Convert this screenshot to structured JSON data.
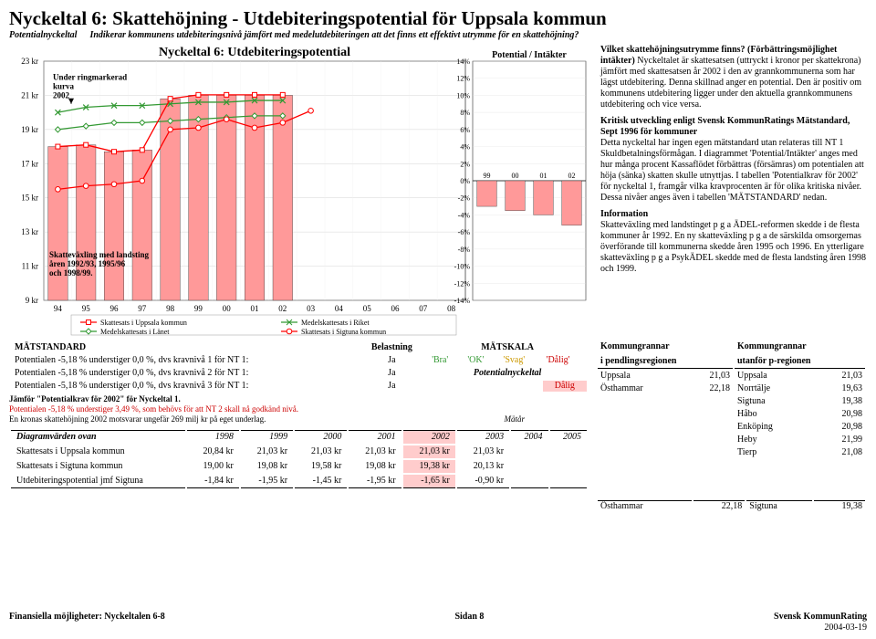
{
  "title": "Nyckeltal 6: Skattehöjning - Utdebiteringspotential för Uppsala kommun",
  "subtitle_label": "Potentialnyckeltal",
  "subtitle_desc": "Indikerar kommunens utdebiteringsnivå jämfört med medelutdebiteringen att det finns ett effektivt utrymme för en skattehöjning?",
  "chart": {
    "title": "Nyckeltal 6: Utdebiteringspotential",
    "ylabel_left_ticks": [
      "23 kr",
      "21 kr",
      "19 kr",
      "17 kr",
      "15 kr",
      "13 kr",
      "11 kr",
      "9 kr"
    ],
    "x_categories": [
      "94",
      "95",
      "96",
      "97",
      "98",
      "99",
      "00",
      "01",
      "02",
      "03",
      "04",
      "05",
      "06",
      "07",
      "08"
    ],
    "bar_values": [
      18.0,
      18.1,
      17.7,
      17.8,
      20.8,
      21.0,
      21.0,
      21.0,
      21.0
    ],
    "bar_color": "#ff9999",
    "line1_label": "Skattesats i Uppsala kommun",
    "line2_label": "Medelskattesats i Riket",
    "line3_label": "Medelskattesats i Länet",
    "line4_label": "Skattesats i Sigtuna kommun",
    "line1_color": "#ff0000",
    "line2_color": "#339933",
    "line3_color": "#339933",
    "line4_color": "#ff0000",
    "line1_vals": [
      18.0,
      18.1,
      17.7,
      17.8,
      20.8,
      21.03,
      21.03,
      21.03,
      21.03
    ],
    "line2_vals": [
      20.0,
      20.3,
      20.4,
      20.4,
      20.5,
      20.6,
      20.6,
      20.7,
      20.7
    ],
    "line3_vals": [
      19.0,
      19.2,
      19.4,
      19.4,
      19.5,
      19.6,
      19.7,
      19.8,
      19.8
    ],
    "line4_vals": [
      15.5,
      15.7,
      15.8,
      16.0,
      19.0,
      19.1,
      19.6,
      19.1,
      19.4,
      20.1
    ],
    "y_min": 9,
    "y_max": 23,
    "annotation1": "Under ringmarkerad kurva 2002",
    "annotation2": "Skatteväxling med landsting åren 1992/93, 1995/96 och 1998/99."
  },
  "mini_chart": {
    "title": "Potential / Intäkter",
    "y_ticks": [
      "14%",
      "12%",
      "10%",
      "8%",
      "6%",
      "4%",
      "2%",
      "0%",
      "-2%",
      "-4%",
      "-6%",
      "-8%",
      "-10%",
      "-12%",
      "-14%"
    ],
    "x_labels": [
      "99",
      "00",
      "01",
      "02"
    ],
    "bar_vals": [
      -3,
      -3.5,
      -4,
      -5.2
    ],
    "bar_color": "#ff9999",
    "y_min": -14,
    "y_max": 14
  },
  "right": {
    "h1": "Vilket skattehöjningsutrymme finns? (Förbättringsmöjlighet intäkter)",
    "p1": "Nyckeltalet är skattesatsen (uttryckt i kronor per skattekrona) jämfört med skattesatsen år 2002 i den av grannkommunerna som har lägst utdebitering. Denna skillnad anger en potential. Den är positiv om kommunens utdebitering ligger under den aktuella grannkommunens utdebitering och vice versa.",
    "h2": "Kritisk utveckling enligt Svensk KommunRatings Mätstandard, Sept 1996 för kommuner",
    "p2": "Detta nyckeltal har ingen egen mätstandard utan relateras till NT 1 Skuldbetalningsförmågan. I diagrammet 'Potential/Intäkter' anges med hur många procent Kassaflödet förbättras (försämras) om potentialen att höja (sänka) skatten skulle utnyttjas. I tabellen 'Potentialkrav för 2002' för nyckeltal 1, framgår vilka kravprocenten är för olika kritiska nivåer. Dessa nivåer anges även i tabellen 'MÄTSTANDARD' nedan.",
    "h3": "Information",
    "p3": "Skatteväxling med landstinget p g a ÄDEL-reformen skedde i de flesta kommuner år 1992. En ny skatteväxling p g a de särskilda omsorgernas överförande till kommunerna skedde åren 1995 och 1996. En ytterligare skatteväxling p g a PsykÄDEL skedde med de flesta landsting åren 1998 och 1999."
  },
  "mat": {
    "header1": "MÄTSTANDARD",
    "header2": "Belastning",
    "header3": "MÄTSKALA",
    "r1": "Potentialen -5,18 % understiger 0,0 %, dvs kravnivå 1 för NT 1:",
    "r2": "Potentialen -5,18 % understiger 0,0 %, dvs kravnivå 2 för NT 1:",
    "r3": "Potentialen -5,18 % understiger 0,0 %, dvs kravnivå 3 för NT 1:",
    "ja": "Ja",
    "bra": "'Bra'",
    "ok": "'OK'",
    "svag": "'Svag'",
    "dalig": "'Dålig'",
    "pn": "Potentialnyckeltal",
    "dalig2": "Dålig",
    "jam": "Jämför \"Potentialkrav för 2002\" för Nyckeltal 1.",
    "red": "Potentialen -5,18 % understiger 3,49 %, som behövs för att NT 2 skall nå godkänd nivå.",
    "ek": "En kronas skattehöjning 2002 motsvarar ungefär 269 milj kr på eget underlag.",
    "matar": "Mätår"
  },
  "diagram": {
    "header": "Diagramvärden ovan",
    "years": [
      "1998",
      "1999",
      "2000",
      "2001",
      "2002",
      "2003",
      "2004",
      "2005"
    ],
    "rows": [
      {
        "label": "Skattesats i Uppsala kommun",
        "vals": [
          "20,84 kr",
          "21,03 kr",
          "21,03 kr",
          "21,03 kr",
          "21,03 kr",
          "21,03 kr",
          "",
          ""
        ]
      },
      {
        "label": "Skattesats i Sigtuna kommun",
        "vals": [
          "19,00 kr",
          "19,08 kr",
          "19,58 kr",
          "19,08 kr",
          "19,38 kr",
          "20,13 kr",
          "",
          ""
        ]
      },
      {
        "label": "Utdebiteringspotential jmf Sigtuna",
        "vals": [
          "-1,84 kr",
          "-1,95 kr",
          "-1,45 kr",
          "-1,95 kr",
          "-1,65 kr",
          "-0,90 kr",
          "",
          ""
        ]
      }
    ]
  },
  "kg": {
    "h1a": "Kommungrannar",
    "h1b": "i pendlingsregionen",
    "h2a": "Kommungrannar",
    "h2b": "utanför p-regionen",
    "left": [
      {
        "n": "Uppsala",
        "v": "21,03"
      },
      {
        "n": "Östhammar",
        "v": "22,18"
      }
    ],
    "right": [
      {
        "n": "Uppsala",
        "v": "21,03"
      },
      {
        "n": "Norrtälje",
        "v": "19,63"
      },
      {
        "n": "Sigtuna",
        "v": "19,38"
      },
      {
        "n": "Håbo",
        "v": "20,98"
      },
      {
        "n": "Enköping",
        "v": "20,98"
      },
      {
        "n": "Heby",
        "v": "21,99"
      },
      {
        "n": "Tierp",
        "v": "21,08"
      }
    ],
    "bottom_left": {
      "n": "Östhammar",
      "v": "22,18"
    },
    "bottom_right": {
      "n": "Sigtuna",
      "v": "19,38"
    }
  },
  "footer": {
    "left": "Finansiella möjligheter: Nyckeltalen 6-8",
    "mid": "Sidan 8",
    "right1": "Svensk KommunRating",
    "right2": "2004-03-19"
  }
}
